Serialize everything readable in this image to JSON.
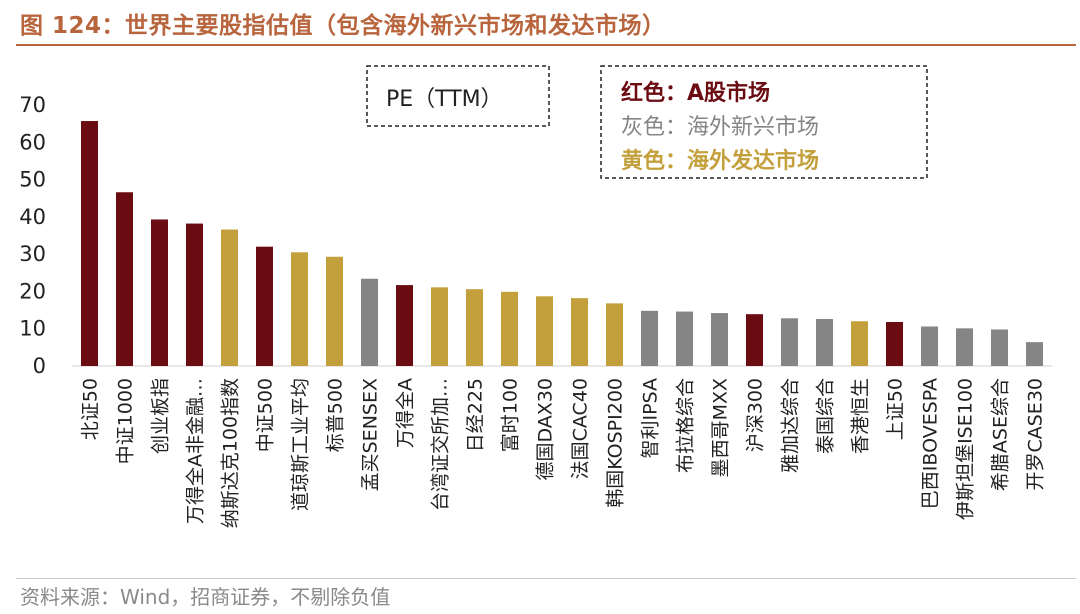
{
  "header": {
    "title": "图 124：世界主要股指估值（包含海外新兴市场和发达市场）"
  },
  "footer": {
    "source": "资料来源：Wind，招商证券，不剔除负值"
  },
  "legend": {
    "metric_box": "PE（TTM）",
    "a_share": "红色：A股市场",
    "emerging": "灰色：海外新兴市场",
    "developed": "黄色：海外发达市场"
  },
  "colors": {
    "a_share": "#6b0c12",
    "emerging": "#858585",
    "developed": "#c4a03c",
    "title": "#b8643c"
  },
  "chart_data": {
    "type": "bar",
    "ylabel": "",
    "xlabel": "",
    "ylim": [
      0,
      70
    ],
    "yticks": [
      0,
      10,
      20,
      30,
      40,
      50,
      60,
      70
    ],
    "grid": false,
    "categories": [
      "北证50",
      "中证1000",
      "创业板指",
      "万得全A非金融…",
      "纳斯达克100指数",
      "中证500",
      "道琼斯工业平均",
      "标普500",
      "孟买SENSEX",
      "万得全A",
      "台湾证交所加…",
      "日经225",
      "富时100",
      "德国DAX30",
      "法国CAC40",
      "韩国KOSPI200",
      "智利IPSA",
      "布拉格综合",
      "墨西哥MXX",
      "沪深300",
      "雅加达综合",
      "泰国综合",
      "香港恒生",
      "上证50",
      "巴西IBOVESPA",
      "伊斯坦堡ISE100",
      "希腊ASE综合",
      "开罗CASE30"
    ],
    "values": [
      65.7,
      46.6,
      39.3,
      38.2,
      36.6,
      32.0,
      30.5,
      29.3,
      23.4,
      21.7,
      21.1,
      20.6,
      19.9,
      18.7,
      18.2,
      16.8,
      14.8,
      14.6,
      14.2,
      13.9,
      12.8,
      12.6,
      12.0,
      11.8,
      10.6,
      10.1,
      9.8,
      6.4
    ],
    "groups": [
      "a_share",
      "a_share",
      "a_share",
      "a_share",
      "developed",
      "a_share",
      "developed",
      "developed",
      "emerging",
      "a_share",
      "developed",
      "developed",
      "developed",
      "developed",
      "developed",
      "developed",
      "emerging",
      "emerging",
      "emerging",
      "a_share",
      "emerging",
      "emerging",
      "developed",
      "a_share",
      "emerging",
      "emerging",
      "emerging",
      "emerging"
    ]
  }
}
